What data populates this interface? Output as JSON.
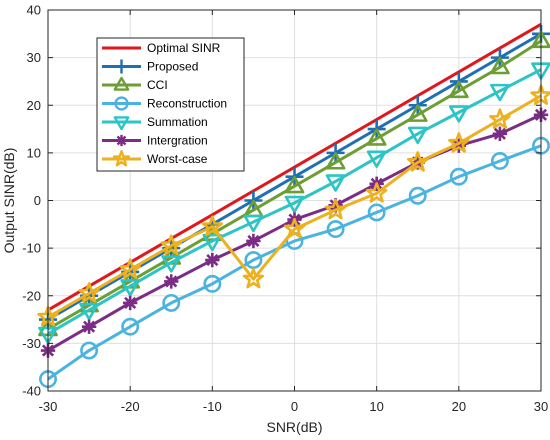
{
  "chart_data": {
    "type": "line",
    "xlabel": "SNR(dB)",
    "ylabel": "Output SINR(dB)",
    "xlim": [
      -30,
      30
    ],
    "ylim": [
      -40,
      40
    ],
    "xticks": [
      -30,
      -20,
      -10,
      0,
      10,
      20,
      30
    ],
    "yticks": [
      -40,
      -30,
      -20,
      -10,
      0,
      10,
      20,
      30,
      40
    ],
    "grid": true,
    "legend_position": "top-left",
    "x": [
      -30,
      -25,
      -20,
      -15,
      -10,
      -5,
      0,
      5,
      10,
      15,
      20,
      25,
      30
    ],
    "series": [
      {
        "name": "Optimal SINR",
        "color": "#e0171b",
        "marker": "none",
        "values": [
          -23,
          -18,
          -13,
          -8,
          -3,
          2,
          7,
          12,
          17,
          22,
          27,
          32,
          37
        ]
      },
      {
        "name": "Proposed",
        "color": "#1f6fb5",
        "marker": "plus",
        "values": [
          -25,
          -20,
          -15,
          -10,
          -5,
          0,
          5,
          10,
          15,
          20,
          25,
          30,
          35
        ]
      },
      {
        "name": "CCI",
        "color": "#6d9e34",
        "marker": "triangle-up",
        "values": [
          -27,
          -22,
          -17,
          -12,
          -7,
          -2,
          3,
          8,
          13,
          18,
          23,
          28,
          33.5
        ]
      },
      {
        "name": "Reconstruction",
        "color": "#4bb3e0",
        "marker": "circle",
        "values": [
          -37.5,
          -31.5,
          -26.5,
          -21.5,
          -17.5,
          -12.5,
          -8.5,
          -6,
          -2.5,
          1,
          5,
          8.3,
          11.5
        ]
      },
      {
        "name": "Summation",
        "color": "#2cc4c4",
        "marker": "triangle-down",
        "values": [
          -28,
          -23,
          -18,
          -13,
          -8.5,
          -4.5,
          -0.5,
          4,
          9,
          14,
          18.5,
          23,
          27.5
        ]
      },
      {
        "name": "Intergration",
        "color": "#7b2c84",
        "marker": "asterisk",
        "values": [
          -31.5,
          -26.5,
          -21.5,
          -17,
          -12.5,
          -8.5,
          -4,
          -1,
          3.5,
          8,
          11.5,
          14,
          18
        ]
      },
      {
        "name": "Worst-case",
        "color": "#edb120",
        "marker": "star",
        "values": [
          -24.5,
          -19.5,
          -14.5,
          -9.5,
          -5.5,
          -16.5,
          -6,
          -2,
          1.5,
          8,
          12,
          17,
          22
        ]
      }
    ]
  }
}
